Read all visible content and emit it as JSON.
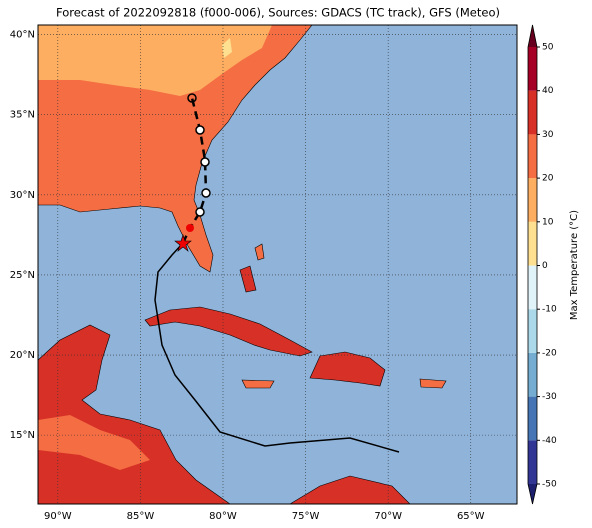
{
  "title": "Forecast of 2022092818 (f000-006), Sources: GDACS (TC track), GFS (Meteo)",
  "map": {
    "xlim": [
      -91.2,
      -62.2
    ],
    "ylim": [
      10.7,
      40.6
    ],
    "xticks": [
      {
        "value": -90,
        "label": "90°W"
      },
      {
        "value": -85,
        "label": "85°W"
      },
      {
        "value": -80,
        "label": "80°W"
      },
      {
        "value": -75,
        "label": "75°W"
      },
      {
        "value": -70,
        "label": "70°W"
      },
      {
        "value": -65,
        "label": "65°W"
      }
    ],
    "yticks": [
      {
        "value": 15,
        "label": "15°N"
      },
      {
        "value": 20,
        "label": "20°N"
      },
      {
        "value": 25,
        "label": "25°N"
      },
      {
        "value": 30,
        "label": "30°N"
      },
      {
        "value": 35,
        "label": "35°N"
      },
      {
        "value": 40,
        "label": "40°N"
      }
    ],
    "grid": true
  },
  "colorbar": {
    "label": "Max Temperature (°C)",
    "lim": [
      -50,
      50
    ],
    "ticks": [
      -50,
      -40,
      -30,
      -20,
      -10,
      0,
      10,
      20,
      30,
      40,
      50
    ],
    "colors": [
      "#313695",
      "#4575b4",
      "#74add1",
      "#abd9e9",
      "#e0f3f8",
      "#fee090",
      "#fdae61",
      "#f46d43",
      "#d73027",
      "#a50026"
    ],
    "under": "#1c1f6e",
    "over": "#67001f"
  }
}
